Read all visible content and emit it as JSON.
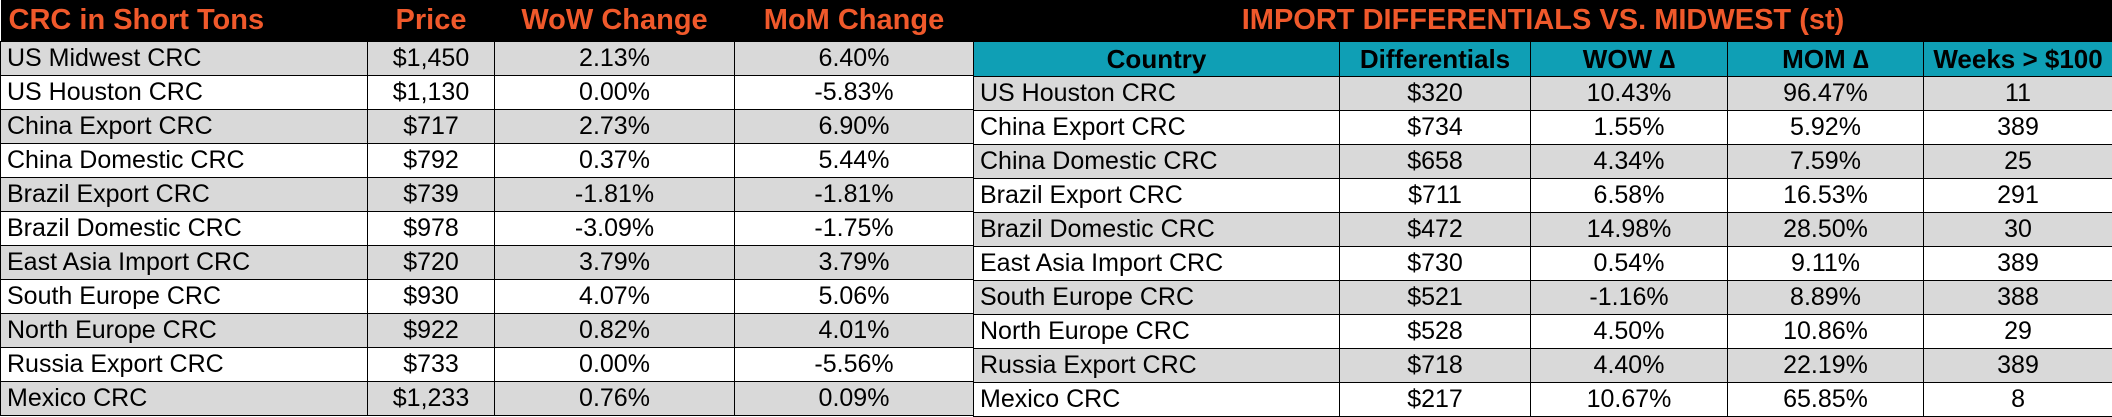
{
  "crc_table": {
    "headers": [
      "CRC in Short Tons",
      "Price",
      "WoW Change",
      "MoM Change"
    ],
    "rows": [
      [
        "US Midwest CRC",
        "$1,450",
        "2.13%",
        "6.40%"
      ],
      [
        "US Houston CRC",
        "$1,130",
        "0.00%",
        "-5.83%"
      ],
      [
        "China Export CRC",
        "$717",
        "2.73%",
        "6.90%"
      ],
      [
        "China Domestic CRC",
        "$792",
        "0.37%",
        "5.44%"
      ],
      [
        "Brazil Export CRC",
        "$739",
        "-1.81%",
        "-1.81%"
      ],
      [
        "Brazil Domestic CRC",
        "$978",
        "-3.09%",
        "-1.75%"
      ],
      [
        "East Asia Import CRC",
        "$720",
        "3.79%",
        "3.79%"
      ],
      [
        "South Europe CRC",
        "$930",
        "4.07%",
        "5.06%"
      ],
      [
        "North Europe CRC",
        "$922",
        "0.82%",
        "4.01%"
      ],
      [
        "Russia Export CRC",
        "$733",
        "0.00%",
        "-5.56%"
      ],
      [
        "Mexico CRC",
        "$1,233",
        "0.76%",
        "0.09%"
      ]
    ]
  },
  "import_table": {
    "title": "IMPORT DIFFERENTIALS VS. MIDWEST (st)",
    "headers": [
      "Country",
      "Differentials",
      "WOW ∆",
      "MOM ∆",
      "Weeks > $100"
    ],
    "rows": [
      [
        "US Houston CRC",
        "$320",
        "10.43%",
        "96.47%",
        "11"
      ],
      [
        "China Export CRC",
        "$734",
        "1.55%",
        "5.92%",
        "389"
      ],
      [
        "China Domestic CRC",
        "$658",
        "4.34%",
        "7.59%",
        "25"
      ],
      [
        "Brazil Export CRC",
        "$711",
        "6.58%",
        "16.53%",
        "291"
      ],
      [
        "Brazil Domestic CRC",
        "$472",
        "14.98%",
        "28.50%",
        "30"
      ],
      [
        "East Asia Import CRC",
        "$730",
        "0.54%",
        "9.11%",
        "389"
      ],
      [
        "South Europe CRC",
        "$521",
        "-1.16%",
        "8.89%",
        "388"
      ],
      [
        "North Europe CRC",
        "$528",
        "4.50%",
        "10.86%",
        "29"
      ],
      [
        "Russia Export CRC",
        "$718",
        "4.40%",
        "22.19%",
        "389"
      ],
      [
        "Mexico CRC",
        "$217",
        "10.67%",
        "65.85%",
        "8"
      ]
    ]
  },
  "colors": {
    "title_text": "#f0592b",
    "title_bg": "#000000",
    "header_bg": "#0f9fb5",
    "row_shade": "#d9d9d9"
  }
}
